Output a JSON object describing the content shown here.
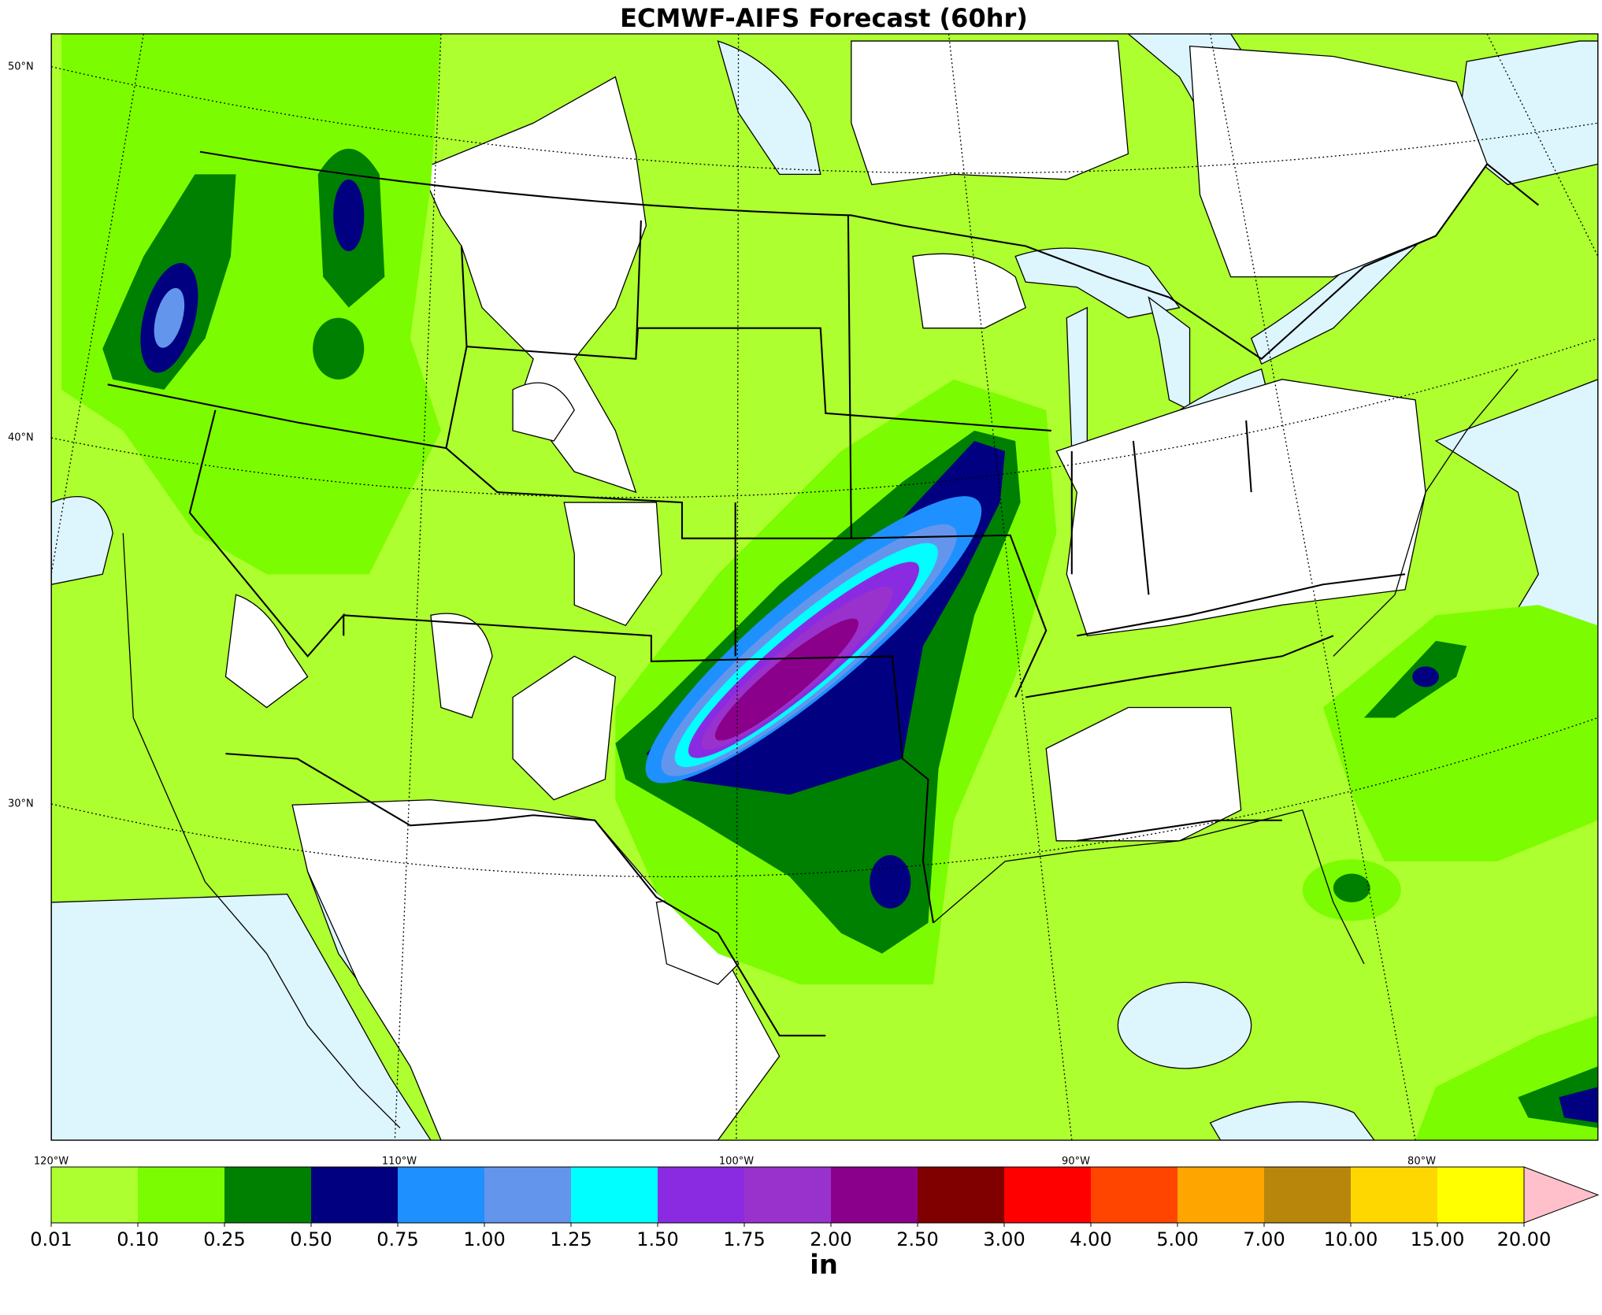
{
  "title": "ECMWF-AIFS Forecast (60hr)",
  "map": {
    "lat_labels": [
      "50°N",
      "40°N",
      "30°N"
    ],
    "lon_labels": [
      "120°W",
      "110°W",
      "100°W",
      "90°W",
      "80°W"
    ]
  },
  "colorbar": {
    "ticks": [
      0.01,
      {
        "value": 0.1,
        "label": "0.10"
      },
      {
        "value": 0.25,
        "label": "0.25"
      },
      {
        "value": 0.5,
        "label": "0.50"
      },
      {
        "value": 0.75,
        "label": "0.75"
      },
      {
        "value": 1,
        "label": "1.00"
      },
      {
        "value": 1.25,
        "label": "1.25"
      },
      {
        "value": 1.5,
        "label": "1.50"
      },
      {
        "value": 1.75,
        "label": "1.75"
      },
      {
        "value": 2,
        "label": "2.00"
      },
      {
        "value": 2.5,
        "label": "2.50"
      },
      {
        "value": 3,
        "label": "3.00"
      },
      {
        "value": 4,
        "label": "4.00"
      },
      {
        "value": 5,
        "label": "5.00"
      },
      {
        "value": 7,
        "label": "7.00"
      },
      {
        "value": 10,
        "label": "10.00"
      },
      {
        "value": 15,
        "label": "15.00"
      },
      {
        "value": 20,
        "label": "20.00"
      }
    ],
    "colors": [
      "#adff2f",
      "#7cfc00",
      "#008000",
      "#000080",
      "#1e90ff",
      "#6495ed",
      "#00ffff",
      "#8a2be2",
      "#9932cc",
      "#8b008b",
      "#800000",
      "#ff0000",
      "#ff4500",
      "#ffa500",
      "#b8860b",
      "#ffd700",
      "#ffff00"
    ],
    "extend_color": "#ffc0cb",
    "unit": "in"
  }
}
